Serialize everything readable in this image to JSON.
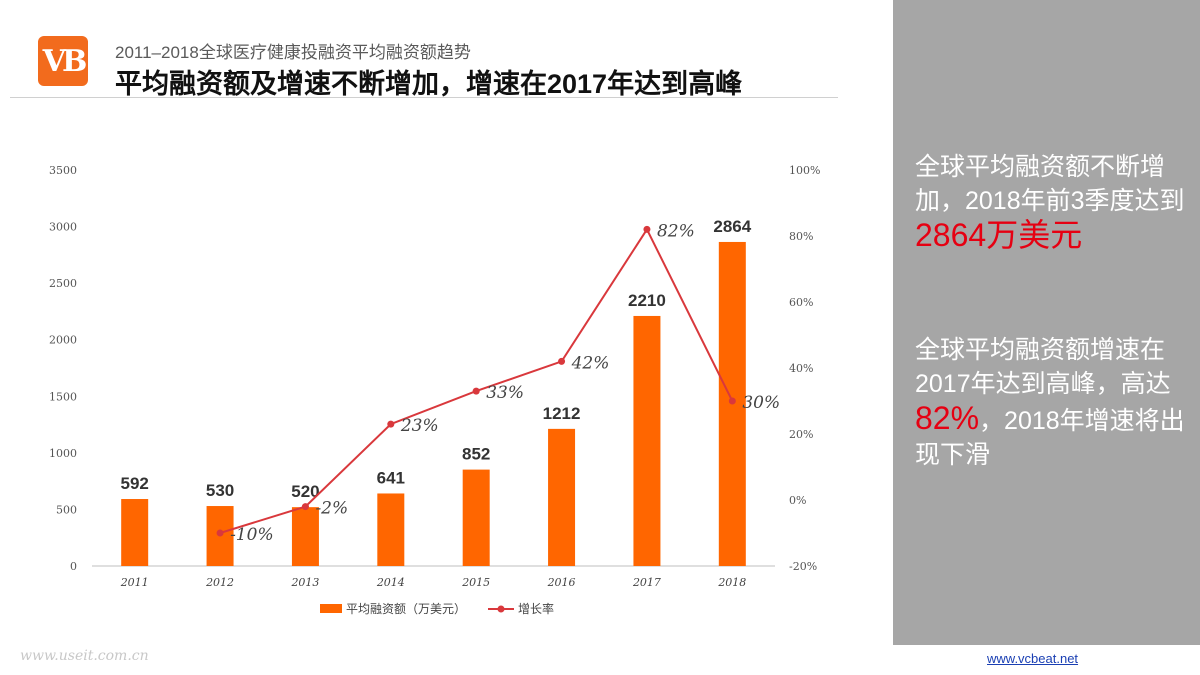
{
  "header": {
    "logo_text": "VB",
    "subtitle": "2011–2018全球医疗健康投融资平均融资额趋势",
    "title": "平均融资额及增速不断增加，增速在2017年达到高峰"
  },
  "chart_data": {
    "type": "bar",
    "categories": [
      "2011",
      "2012",
      "2013",
      "2014",
      "2015",
      "2016",
      "2017",
      "2018"
    ],
    "series": [
      {
        "name": "平均融资额（万美元）",
        "kind": "bar",
        "axis": "left",
        "color": "#ff6600",
        "values": [
          592,
          530,
          520,
          641,
          852,
          1212,
          2210,
          2864
        ]
      },
      {
        "name": "增长率",
        "kind": "line",
        "axis": "right",
        "color": "#d9383c",
        "values": [
          null,
          -10,
          -2,
          23,
          33,
          42,
          82,
          30
        ],
        "labels": [
          "",
          "-10%",
          "-2%",
          "23%",
          "33%",
          "42%",
          "82%",
          "30%"
        ]
      }
    ],
    "left_axis": {
      "ticks": [
        "0",
        "500",
        "1000",
        "1500",
        "2000",
        "2500",
        "3000",
        "3500"
      ],
      "ylim": [
        0,
        3500
      ]
    },
    "right_axis": {
      "ticks": [
        "-20%",
        "0%",
        "20%",
        "40%",
        "60%",
        "80%",
        "100%"
      ],
      "ylim": [
        -20,
        100
      ]
    },
    "legend_position": "bottom-center"
  },
  "sidebar": {
    "note1_text": "全球平均融资额不断增加，2018年前3季度达到",
    "note1_highlight": "2864万美元",
    "note2_text_a": "全球平均融资额增速在2017年达到高峰，高达",
    "note2_highlight": "82%",
    "note2_text_b": "，2018年增速将出现下滑"
  },
  "footer": {
    "link": "www.vcbeat.net",
    "watermark": "www.useit.com.cn"
  }
}
